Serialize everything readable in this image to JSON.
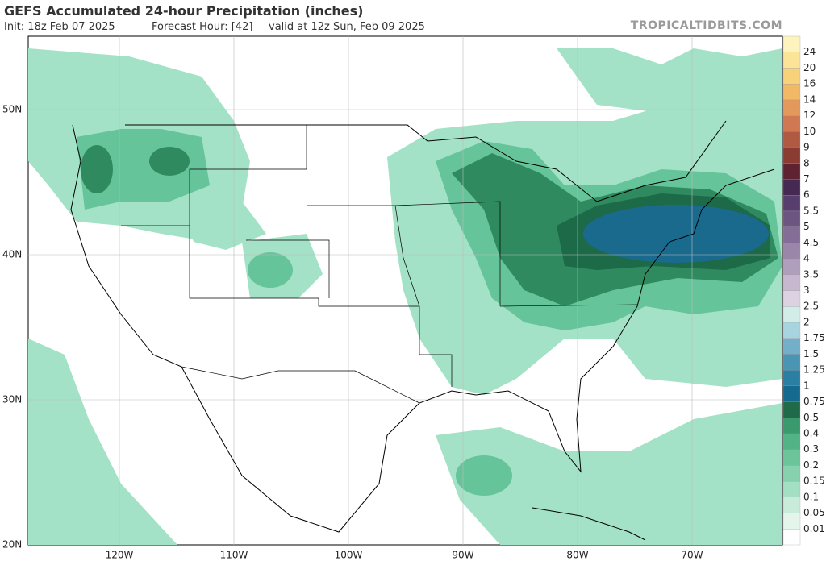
{
  "header": {
    "title": "GEFS Accumulated 24-hour Precipitation (inches)",
    "init": "Init: 18z Feb 07 2025",
    "forecast_hour": "Forecast Hour: [42]",
    "valid": "valid at 12z Sun, Feb 09 2025",
    "watermark": "TROPICALTIDBITS.COM"
  },
  "map": {
    "lat_labels": [
      "50N",
      "40N",
      "30N",
      "20N"
    ],
    "lon_labels": [
      "120W",
      "110W",
      "100W",
      "90W",
      "80W",
      "70W"
    ]
  },
  "colorbar": {
    "bottom_color": "#ffffff",
    "levels": [
      {
        "label": "0.01",
        "color": "#e4f5ec"
      },
      {
        "label": "0.05",
        "color": "#c8ecd9"
      },
      {
        "label": "0.1",
        "color": "#a3e0c3"
      },
      {
        "label": "0.15",
        "color": "#86d2ae"
      },
      {
        "label": "0.2",
        "color": "#6cc49a"
      },
      {
        "label": "0.3",
        "color": "#52b386"
      },
      {
        "label": "0.4",
        "color": "#3a9a6d"
      },
      {
        "label": "0.5",
        "color": "#1f6b49"
      },
      {
        "label": "0.75",
        "color": "#156b8f"
      },
      {
        "label": "1",
        "color": "#2a7fa2"
      },
      {
        "label": "1.25",
        "color": "#4b95b4"
      },
      {
        "label": "1.5",
        "color": "#74afc9"
      },
      {
        "label": "1.75",
        "color": "#a8d4df"
      },
      {
        "label": "2",
        "color": "#d2ece8"
      },
      {
        "label": "2.5",
        "color": "#ddd2e2"
      },
      {
        "label": "3",
        "color": "#c7b8cf"
      },
      {
        "label": "3.5",
        "color": "#b09fbc"
      },
      {
        "label": "4",
        "color": "#9a86a9"
      },
      {
        "label": "4.5",
        "color": "#846d96"
      },
      {
        "label": "5",
        "color": "#6d5582"
      },
      {
        "label": "5.5",
        "color": "#573e6e"
      },
      {
        "label": "6",
        "color": "#462953"
      },
      {
        "label": "7",
        "color": "#5e2230"
      },
      {
        "label": "8",
        "color": "#8a3c33"
      },
      {
        "label": "9",
        "color": "#b15a43"
      },
      {
        "label": "10",
        "color": "#cf7852"
      },
      {
        "label": "12",
        "color": "#e3985c"
      },
      {
        "label": "14",
        "color": "#f1b865"
      },
      {
        "label": "16",
        "color": "#f8d27a"
      },
      {
        "label": "20",
        "color": "#fbe497"
      },
      {
        "label": "24",
        "color": "#fdf3bf"
      }
    ]
  }
}
